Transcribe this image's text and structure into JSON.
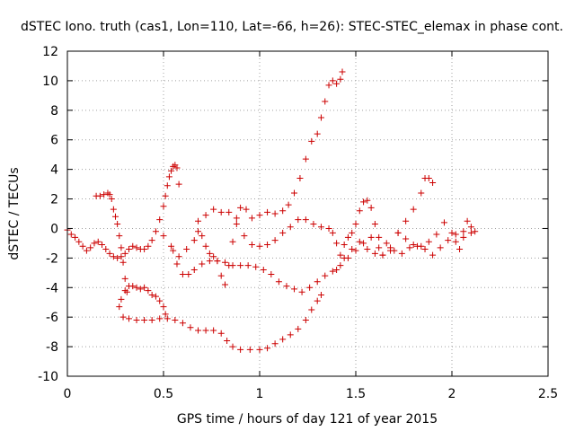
{
  "chart_data": {
    "type": "scatter",
    "title": "dSTEC Iono. truth (cas1, Lon=110, Lat=-66, h=26): STEC-STEC_elemax in phase cont.",
    "xlabel": "GPS time / hours of day 121 of year 2015",
    "ylabel": "dSTEC  / TECUs",
    "xlim": [
      0,
      2.5
    ],
    "ylim": [
      -10,
      12
    ],
    "xticks": [
      0,
      0.5,
      1,
      1.5,
      2,
      2.5
    ],
    "xtick_labels": [
      "0",
      "0.5",
      "1",
      "1.5",
      "2",
      "2.5"
    ],
    "yticks": [
      -10,
      -8,
      -6,
      -4,
      -2,
      0,
      2,
      4,
      6,
      8,
      10,
      12
    ],
    "ytick_labels": [
      "-10",
      "-8",
      "-6",
      "-4",
      "-2",
      "0",
      "2",
      "4",
      "6",
      "8",
      "10",
      "12"
    ],
    "grid": true,
    "marker": "plus",
    "color": "#cc0000",
    "series": [
      {
        "points": [
          [
            0.0,
            -0.1
          ],
          [
            0.02,
            -0.4
          ],
          [
            0.04,
            -0.6
          ],
          [
            0.06,
            -0.9
          ],
          [
            0.08,
            -1.2
          ],
          [
            0.1,
            -1.5
          ],
          [
            0.12,
            -1.3
          ],
          [
            0.14,
            -1.0
          ],
          [
            0.16,
            -0.9
          ],
          [
            0.18,
            -1.1
          ],
          [
            0.2,
            -1.4
          ],
          [
            0.22,
            -1.7
          ],
          [
            0.24,
            -1.9
          ],
          [
            0.26,
            -2.0
          ],
          [
            0.28,
            -1.9
          ],
          [
            0.3,
            -1.7
          ],
          [
            0.32,
            -1.4
          ],
          [
            0.34,
            -1.2
          ],
          [
            0.36,
            -1.3
          ],
          [
            0.38,
            -1.4
          ],
          [
            0.4,
            -1.4
          ],
          [
            0.42,
            -1.2
          ],
          [
            0.44,
            -0.8
          ],
          [
            0.46,
            -0.2
          ],
          [
            0.48,
            0.6
          ],
          [
            0.5,
            1.5
          ],
          [
            0.51,
            2.2
          ],
          [
            0.52,
            2.9
          ],
          [
            0.53,
            3.5
          ],
          [
            0.54,
            3.9
          ],
          [
            0.55,
            4.2
          ],
          [
            0.56,
            4.3
          ],
          [
            0.57,
            4.1
          ],
          [
            0.58,
            3.0
          ]
        ]
      },
      {
        "points": [
          [
            0.15,
            2.2
          ],
          [
            0.17,
            2.2
          ],
          [
            0.19,
            2.3
          ],
          [
            0.21,
            2.4
          ],
          [
            0.22,
            2.3
          ],
          [
            0.23,
            2.0
          ],
          [
            0.24,
            1.3
          ],
          [
            0.25,
            0.8
          ],
          [
            0.26,
            0.3
          ],
          [
            0.27,
            -0.5
          ],
          [
            0.28,
            -1.3
          ],
          [
            0.29,
            -2.3
          ],
          [
            0.3,
            -3.4
          ],
          [
            0.31,
            -4.3
          ]
        ]
      },
      {
        "points": [
          [
            0.27,
            -5.3
          ],
          [
            0.28,
            -4.8
          ],
          [
            0.3,
            -4.2
          ],
          [
            0.32,
            -3.9
          ],
          [
            0.34,
            -3.9
          ],
          [
            0.36,
            -4.0
          ],
          [
            0.38,
            -4.1
          ],
          [
            0.4,
            -4.0
          ],
          [
            0.42,
            -4.2
          ],
          [
            0.44,
            -4.5
          ],
          [
            0.46,
            -4.6
          ],
          [
            0.48,
            -4.9
          ],
          [
            0.5,
            -5.3
          ],
          [
            0.51,
            -5.8
          ]
        ]
      },
      {
        "points": [
          [
            0.29,
            -6.0
          ],
          [
            0.32,
            -6.1
          ],
          [
            0.36,
            -6.2
          ],
          [
            0.4,
            -6.2
          ],
          [
            0.44,
            -6.2
          ],
          [
            0.48,
            -6.1
          ],
          [
            0.52,
            -6.1
          ],
          [
            0.56,
            -6.2
          ],
          [
            0.6,
            -6.4
          ],
          [
            0.64,
            -6.7
          ],
          [
            0.68,
            -6.9
          ],
          [
            0.72,
            -6.9
          ],
          [
            0.76,
            -6.9
          ],
          [
            0.8,
            -7.1
          ],
          [
            0.83,
            -7.6
          ],
          [
            0.86,
            -8.0
          ],
          [
            0.9,
            -8.2
          ],
          [
            0.95,
            -8.2
          ],
          [
            1.0,
            -8.2
          ],
          [
            1.04,
            -8.1
          ],
          [
            1.08,
            -7.8
          ],
          [
            1.12,
            -7.5
          ],
          [
            1.16,
            -7.2
          ],
          [
            1.2,
            -6.8
          ],
          [
            1.24,
            -6.2
          ],
          [
            1.27,
            -5.5
          ],
          [
            1.3,
            -4.9
          ],
          [
            1.32,
            -4.5
          ]
        ]
      },
      {
        "points": [
          [
            0.55,
            -1.5
          ],
          [
            0.57,
            -2.4
          ],
          [
            0.6,
            -3.1
          ],
          [
            0.63,
            -3.1
          ],
          [
            0.66,
            -2.8
          ],
          [
            0.7,
            -2.4
          ],
          [
            0.74,
            -2.2
          ],
          [
            0.78,
            -2.2
          ],
          [
            0.82,
            -2.3
          ],
          [
            0.86,
            -2.5
          ],
          [
            0.9,
            -2.5
          ],
          [
            0.94,
            -2.5
          ],
          [
            0.98,
            -2.6
          ],
          [
            1.02,
            -2.8
          ],
          [
            1.06,
            -3.1
          ],
          [
            1.1,
            -3.6
          ],
          [
            1.14,
            -3.9
          ],
          [
            1.18,
            -4.1
          ],
          [
            1.22,
            -4.3
          ],
          [
            1.26,
            -4.0
          ],
          [
            1.3,
            -3.6
          ],
          [
            1.34,
            -3.2
          ],
          [
            1.38,
            -2.9
          ],
          [
            1.42,
            -2.5
          ],
          [
            1.46,
            -2.0
          ],
          [
            1.5,
            -1.5
          ],
          [
            1.54,
            -1.0
          ],
          [
            1.58,
            -0.6
          ],
          [
            1.62,
            -0.6
          ],
          [
            1.66,
            -1.0
          ],
          [
            1.7,
            -1.5
          ],
          [
            1.74,
            -1.7
          ],
          [
            1.78,
            -1.3
          ],
          [
            1.82,
            -1.2
          ],
          [
            1.86,
            -1.4
          ],
          [
            1.9,
            -1.8
          ],
          [
            1.94,
            -1.3
          ],
          [
            1.98,
            -0.8
          ],
          [
            2.02,
            -0.4
          ],
          [
            2.06,
            -0.2
          ],
          [
            2.1,
            0.1
          ]
        ]
      },
      {
        "points": [
          [
            0.5,
            -0.5
          ],
          [
            0.54,
            -1.2
          ],
          [
            0.58,
            -1.9
          ],
          [
            0.62,
            -1.4
          ],
          [
            0.66,
            -0.8
          ],
          [
            0.68,
            -0.2
          ],
          [
            0.7,
            -0.5
          ],
          [
            0.72,
            -1.2
          ],
          [
            0.74,
            -1.7
          ],
          [
            0.76,
            -1.9
          ],
          [
            0.78,
            -2.2
          ],
          [
            0.8,
            -3.2
          ],
          [
            0.82,
            -3.8
          ],
          [
            0.84,
            -2.5
          ],
          [
            0.86,
            -0.9
          ],
          [
            0.88,
            0.7
          ],
          [
            0.9,
            1.4
          ],
          [
            0.93,
            1.3
          ],
          [
            0.96,
            0.7
          ],
          [
            1.0,
            0.9
          ],
          [
            1.04,
            1.1
          ],
          [
            1.08,
            1.0
          ],
          [
            1.12,
            1.2
          ],
          [
            1.15,
            1.6
          ],
          [
            1.18,
            2.4
          ],
          [
            1.21,
            3.4
          ],
          [
            1.24,
            4.7
          ],
          [
            1.27,
            5.9
          ],
          [
            1.3,
            6.4
          ],
          [
            1.32,
            7.5
          ],
          [
            1.34,
            8.6
          ],
          [
            1.36,
            9.7
          ],
          [
            1.38,
            10.0
          ],
          [
            1.4,
            9.8
          ],
          [
            1.42,
            10.1
          ],
          [
            1.43,
            10.6
          ]
        ]
      },
      {
        "points": [
          [
            0.68,
            0.5
          ],
          [
            0.72,
            0.9
          ],
          [
            0.76,
            1.3
          ],
          [
            0.8,
            1.1
          ],
          [
            0.84,
            1.1
          ],
          [
            0.88,
            0.3
          ],
          [
            0.92,
            -0.5
          ],
          [
            0.96,
            -1.1
          ],
          [
            1.0,
            -1.2
          ],
          [
            1.04,
            -1.1
          ],
          [
            1.08,
            -0.8
          ],
          [
            1.12,
            -0.3
          ],
          [
            1.16,
            0.1
          ],
          [
            1.2,
            0.6
          ],
          [
            1.24,
            0.6
          ],
          [
            1.28,
            0.3
          ],
          [
            1.32,
            0.1
          ],
          [
            1.36,
            0.0
          ],
          [
            1.38,
            -0.3
          ],
          [
            1.4,
            -1.0
          ],
          [
            1.42,
            -1.8
          ],
          [
            1.44,
            -1.1
          ],
          [
            1.46,
            -0.6
          ],
          [
            1.48,
            -0.3
          ],
          [
            1.5,
            0.3
          ],
          [
            1.52,
            1.2
          ],
          [
            1.54,
            1.8
          ],
          [
            1.56,
            1.9
          ],
          [
            1.58,
            1.4
          ],
          [
            1.6,
            0.3
          ],
          [
            1.62,
            -1.3
          ],
          [
            1.64,
            -1.8
          ],
          [
            1.68,
            -1.3
          ],
          [
            1.72,
            -0.3
          ],
          [
            1.76,
            0.5
          ],
          [
            1.8,
            1.3
          ],
          [
            1.84,
            2.4
          ],
          [
            1.86,
            3.4
          ],
          [
            1.88,
            3.4
          ],
          [
            1.9,
            3.1
          ]
        ]
      },
      {
        "points": [
          [
            1.4,
            -2.8
          ],
          [
            1.44,
            -2.0
          ],
          [
            1.48,
            -1.4
          ],
          [
            1.52,
            -0.9
          ],
          [
            1.56,
            -1.4
          ],
          [
            1.6,
            -1.7
          ],
          [
            1.64,
            -1.8
          ],
          [
            1.68,
            -1.5
          ],
          [
            1.72,
            -0.3
          ],
          [
            1.76,
            -0.7
          ],
          [
            1.8,
            -1.1
          ],
          [
            1.84,
            -1.2
          ],
          [
            1.88,
            -0.9
          ],
          [
            1.92,
            -0.4
          ],
          [
            1.96,
            0.4
          ],
          [
            2.0,
            -0.3
          ],
          [
            2.02,
            -0.9
          ],
          [
            2.04,
            -1.4
          ],
          [
            2.06,
            -0.6
          ],
          [
            2.08,
            0.5
          ],
          [
            2.1,
            -0.3
          ],
          [
            2.12,
            -0.2
          ]
        ]
      }
    ]
  }
}
